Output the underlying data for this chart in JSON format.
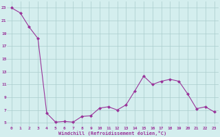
{
  "x": [
    0,
    1,
    2,
    3,
    4,
    5,
    6,
    7,
    8,
    9,
    10,
    11,
    12,
    13,
    14,
    15,
    16,
    17,
    18,
    19,
    20,
    21,
    22,
    23
  ],
  "y": [
    23.0,
    22.2,
    20.0,
    18.2,
    6.5,
    5.1,
    5.2,
    5.1,
    6.0,
    6.1,
    7.3,
    7.5,
    7.0,
    7.8,
    10.0,
    12.3,
    11.0,
    11.5,
    11.8,
    11.5,
    9.5,
    7.2,
    7.5,
    6.7
  ],
  "line_color": "#993399",
  "marker": "D",
  "marker_size": 2,
  "bg_color": "#d4eeee",
  "grid_color": "#aacccc",
  "xlabel": "Windchill (Refroidissement éolien,°C)",
  "xlabel_color": "#993399",
  "tick_color": "#993399",
  "yticks": [
    5,
    7,
    9,
    11,
    13,
    15,
    17,
    19,
    21,
    23
  ],
  "xticks": [
    0,
    1,
    2,
    3,
    4,
    5,
    6,
    7,
    8,
    9,
    10,
    11,
    12,
    13,
    14,
    15,
    16,
    17,
    18,
    19,
    20,
    21,
    22,
    23
  ],
  "ylim": [
    4.5,
    24.0
  ],
  "xlim": [
    -0.5,
    23.5
  ]
}
